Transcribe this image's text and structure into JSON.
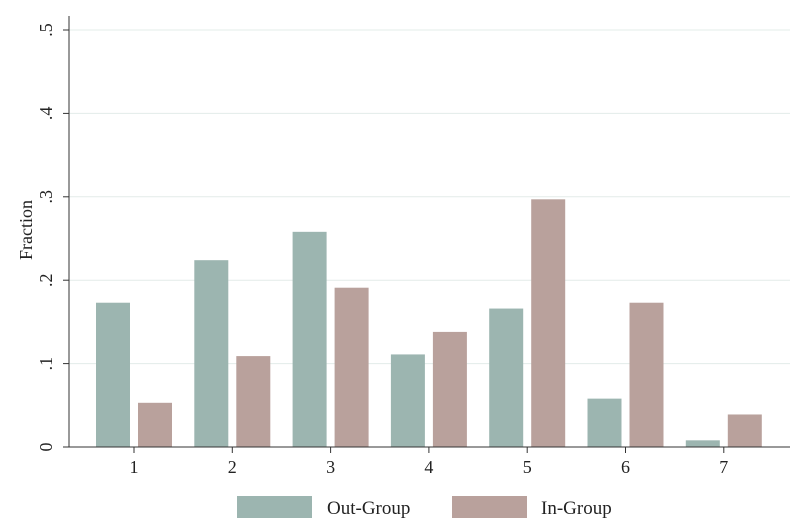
{
  "chart_data": {
    "type": "bar",
    "categories": [
      "1",
      "2",
      "3",
      "4",
      "5",
      "6",
      "7"
    ],
    "series": [
      {
        "name": "Out-Group",
        "color": "#9cb5b0",
        "values": [
          0.173,
          0.224,
          0.258,
          0.111,
          0.166,
          0.058,
          0.008
        ]
      },
      {
        "name": "In-Group",
        "color": "#b9a19c",
        "values": [
          0.053,
          0.109,
          0.191,
          0.138,
          0.297,
          0.173,
          0.039
        ]
      }
    ],
    "xlabel": "",
    "ylabel": "Fraction",
    "ylim": [
      0,
      0.5
    ],
    "yticks": [
      {
        "value": 0,
        "label": "0"
      },
      {
        "value": 0.1,
        "label": ".1"
      },
      {
        "value": 0.2,
        "label": ".2"
      },
      {
        "value": 0.3,
        "label": ".3"
      },
      {
        "value": 0.4,
        "label": ".4"
      },
      {
        "value": 0.5,
        "label": ".5"
      }
    ],
    "grid": true,
    "legend": "bottom"
  }
}
